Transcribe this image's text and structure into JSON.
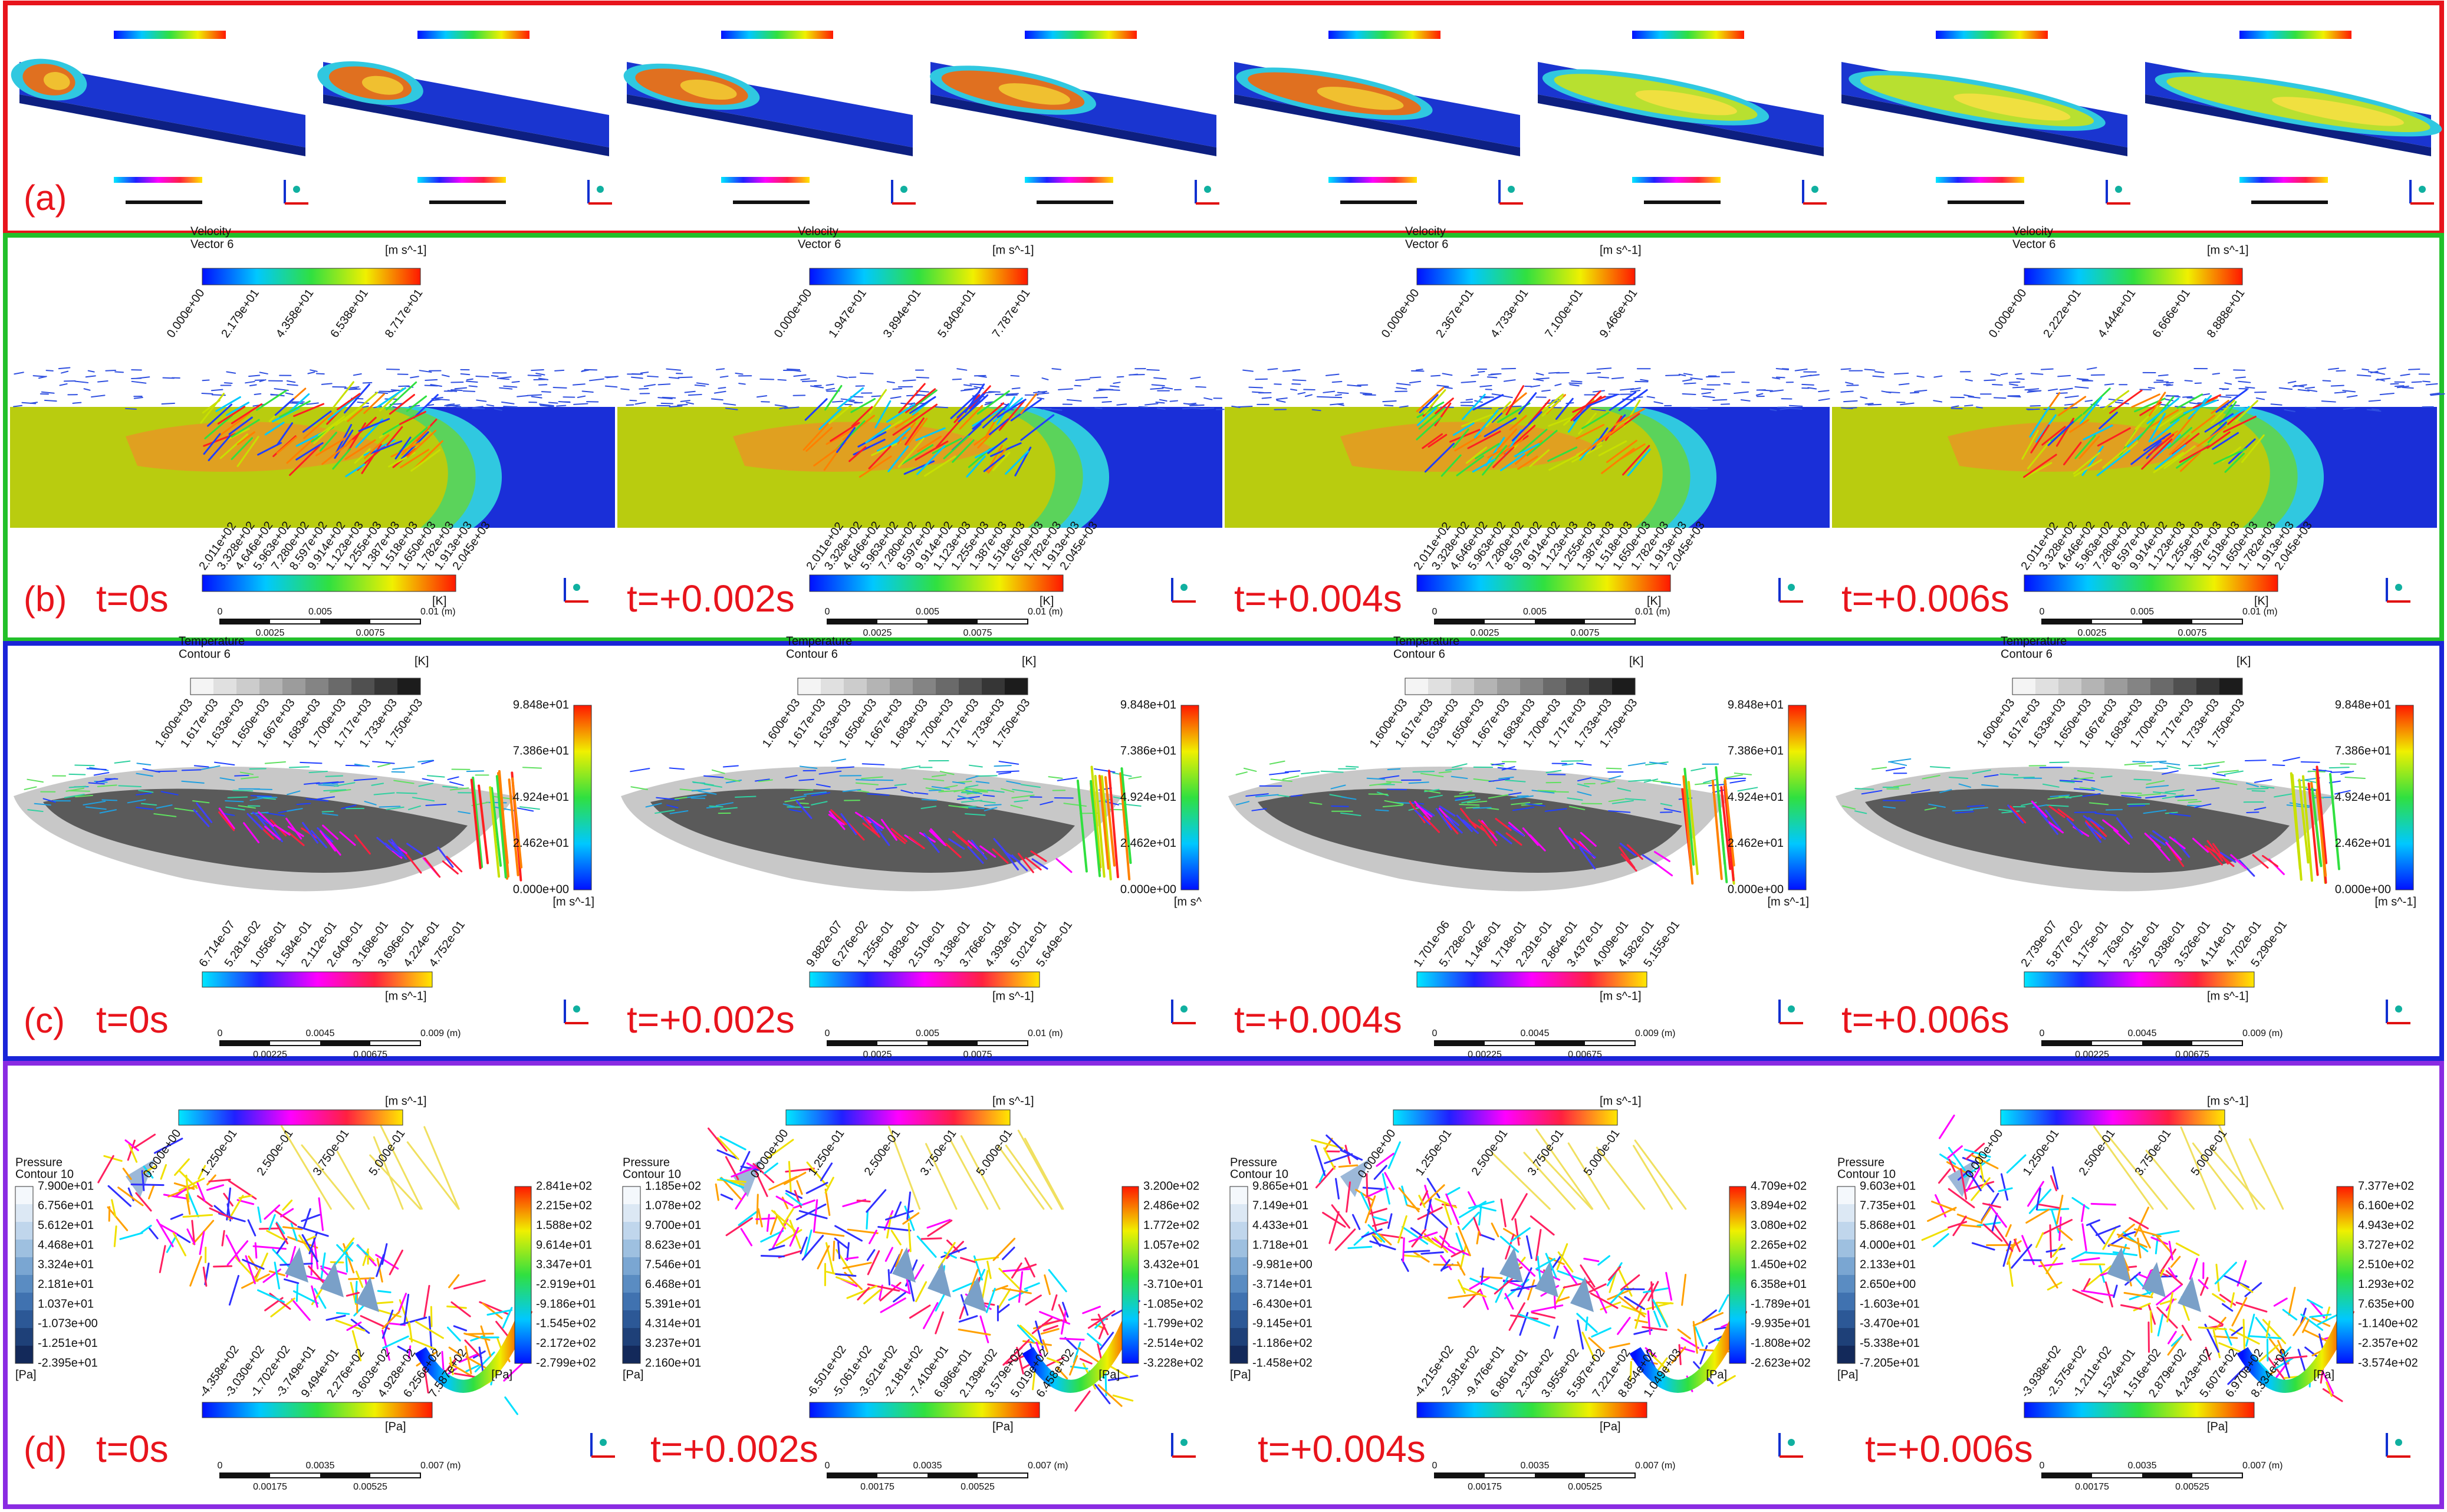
{
  "panel_a": {
    "label": "(a)"
  },
  "panel_b": {
    "label": "(b)",
    "frames": [
      {
        "time": "t=0s",
        "velocity_bar": {
          "title": "Velocity",
          "subtitle": "Vector 6",
          "unit": "[m s^-1]",
          "ticks": [
            "0.000e+00",
            "2.179e+01",
            "4.358e+01",
            "6.538e+01",
            "8.717e+01"
          ]
        },
        "temperature_bar": {
          "unit": "[K]",
          "ticks": [
            "2.011e+02",
            "3.328e+02",
            "4.646e+02",
            "5.963e+02",
            "7.280e+02",
            "8.597e+02",
            "9.914e+02",
            "1.123e+03",
            "1.255e+03",
            "1.387e+03",
            "1.518e+03",
            "1.650e+03",
            "1.782e+03",
            "1.913e+03",
            "2.045e+03"
          ]
        },
        "scale": {
          "ticks": [
            "0",
            "0.005",
            "0.01 (m)"
          ],
          "minor": [
            "0.0025",
            "0.0075"
          ]
        }
      },
      {
        "time": "t=+0.002s",
        "velocity_bar": {
          "title": "Velocity",
          "subtitle": "Vector 6",
          "unit": "[m s^-1]",
          "ticks": [
            "0.000e+00",
            "1.947e+01",
            "3.894e+01",
            "5.840e+01",
            "7.787e+01"
          ]
        },
        "temperature_bar": {
          "unit": "[K]",
          "ticks": [
            "2.011e+02",
            "3.328e+02",
            "4.646e+02",
            "5.963e+02",
            "7.280e+02",
            "8.597e+02",
            "9.914e+02",
            "1.123e+03",
            "1.255e+03",
            "1.387e+03",
            "1.518e+03",
            "1.650e+03",
            "1.782e+03",
            "1.913e+03",
            "2.045e+03"
          ]
        },
        "scale": {
          "ticks": [
            "0",
            "0.005",
            "0.01 (m)"
          ],
          "minor": [
            "0.0025",
            "0.0075"
          ]
        }
      },
      {
        "time": "t=+0.004s",
        "velocity_bar": {
          "title": "Velocity",
          "subtitle": "Vector 6",
          "unit": "[m s^-1]",
          "ticks": [
            "0.000e+00",
            "2.367e+01",
            "4.733e+01",
            "7.100e+01",
            "9.466e+01"
          ]
        },
        "temperature_bar": {
          "unit": "[K]",
          "ticks": [
            "2.011e+02",
            "3.328e+02",
            "4.646e+02",
            "5.963e+02",
            "7.280e+02",
            "8.597e+02",
            "9.914e+02",
            "1.123e+03",
            "1.255e+03",
            "1.387e+03",
            "1.518e+03",
            "1.650e+03",
            "1.782e+03",
            "1.913e+03",
            "2.045e+03"
          ]
        },
        "scale": {
          "ticks": [
            "0",
            "0.005",
            "0.01 (m)"
          ],
          "minor": [
            "0.0025",
            "0.0075"
          ]
        }
      },
      {
        "time": "t=+0.006s",
        "velocity_bar": {
          "title": "Velocity",
          "subtitle": "Vector 6",
          "unit": "[m s^-1]",
          "ticks": [
            "0.000e+00",
            "2.222e+01",
            "4.444e+01",
            "6.666e+01",
            "8.888e+01"
          ]
        },
        "temperature_bar": {
          "unit": "[K]",
          "ticks": [
            "2.011e+02",
            "3.328e+02",
            "4.646e+02",
            "5.963e+02",
            "7.280e+02",
            "8.597e+02",
            "9.914e+02",
            "1.123e+03",
            "1.255e+03",
            "1.387e+03",
            "1.518e+03",
            "1.650e+03",
            "1.782e+03",
            "1.913e+03",
            "2.045e+03"
          ]
        },
        "scale": {
          "ticks": [
            "0",
            "0.005",
            "0.01 (m)"
          ],
          "minor": [
            "0.0025",
            "0.0075"
          ]
        }
      }
    ]
  },
  "panel_c": {
    "label": "(c)",
    "frames": [
      {
        "time": "t=0s",
        "temperature_bar": {
          "title": "Temperature",
          "subtitle": "Contour 6",
          "unit": "[K]",
          "ticks": [
            "1.600e+03",
            "1.617e+03",
            "1.633e+03",
            "1.650e+03",
            "1.667e+03",
            "1.683e+03",
            "1.700e+03",
            "1.717e+03",
            "1.733e+03",
            "1.750e+03"
          ]
        },
        "side_bar": {
          "unit": "[m s^-1]",
          "ticks": [
            "9.848e+01",
            "7.386e+01",
            "4.924e+01",
            "2.462e+01",
            "0.000e+00"
          ]
        },
        "bottom_bar": {
          "unit": "[m s^-1]",
          "ticks": [
            "6.714e-07",
            "5.281e-02",
            "1.056e-01",
            "1.584e-01",
            "2.112e-01",
            "2.640e-01",
            "3.168e-01",
            "3.696e-01",
            "4.224e-01",
            "4.752e-01"
          ]
        },
        "scale": {
          "ticks": [
            "0",
            "0.0045",
            "0.009 (m)"
          ],
          "minor": [
            "0.00225",
            "0.00675"
          ]
        }
      },
      {
        "time": "t=+0.002s",
        "temperature_bar": {
          "title": "Temperature",
          "subtitle": "Contour 6",
          "unit": "[K]",
          "ticks": [
            "1.600e+03",
            "1.617e+03",
            "1.633e+03",
            "1.650e+03",
            "1.667e+03",
            "1.683e+03",
            "1.700e+03",
            "1.717e+03",
            "1.733e+03",
            "1.750e+03"
          ]
        },
        "side_bar": {
          "unit": "[m s^",
          "ticks": [
            "9.848e+01",
            "7.386e+01",
            "4.924e+01",
            "2.462e+01",
            "0.000e+00"
          ]
        },
        "bottom_bar": {
          "unit": "[m s^-1]",
          "ticks": [
            "9.882e-07",
            "6.276e-02",
            "1.255e-01",
            "1.883e-01",
            "2.510e-01",
            "3.138e-01",
            "3.766e-01",
            "4.393e-01",
            "5.021e-01",
            "5.649e-01"
          ]
        },
        "scale": {
          "ticks": [
            "0",
            "0.005",
            "0.01 (m)"
          ],
          "minor": [
            "0.0025",
            "0.0075"
          ]
        }
      },
      {
        "time": "t=+0.004s",
        "temperature_bar": {
          "title": "Temperature",
          "subtitle": "Contour 6",
          "unit": "[K]",
          "ticks": [
            "1.600e+03",
            "1.617e+03",
            "1.633e+03",
            "1.650e+03",
            "1.667e+03",
            "1.683e+03",
            "1.700e+03",
            "1.717e+03",
            "1.733e+03",
            "1.750e+03"
          ]
        },
        "side_bar": {
          "unit": "[m s^-1]",
          "ticks": [
            "9.848e+01",
            "7.386e+01",
            "4.924e+01",
            "2.462e+01",
            "0.000e+00"
          ]
        },
        "bottom_bar": {
          "unit": "[m s^-1]",
          "ticks": [
            "1.701e-06",
            "5.728e-02",
            "1.146e-01",
            "1.718e-01",
            "2.291e-01",
            "2.864e-01",
            "3.437e-01",
            "4.009e-01",
            "4.582e-01",
            "5.155e-01"
          ]
        },
        "scale": {
          "ticks": [
            "0",
            "0.0045",
            "0.009 (m)"
          ],
          "minor": [
            "0.00225",
            "0.00675"
          ]
        }
      },
      {
        "time": "t=+0.006s",
        "temperature_bar": {
          "title": "Temperature",
          "subtitle": "Contour 6",
          "unit": "[K]",
          "ticks": [
            "1.600e+03",
            "1.617e+03",
            "1.633e+03",
            "1.650e+03",
            "1.667e+03",
            "1.683e+03",
            "1.700e+03",
            "1.717e+03",
            "1.733e+03",
            "1.750e+03"
          ]
        },
        "side_bar": {
          "unit": "[m s^-1]",
          "ticks": [
            "9.848e+01",
            "7.386e+01",
            "4.924e+01",
            "2.462e+01",
            "0.000e+00"
          ]
        },
        "bottom_bar": {
          "unit": "[m s^-1]",
          "ticks": [
            "2.739e-07",
            "5.877e-02",
            "1.175e-01",
            "1.763e-01",
            "2.351e-01",
            "2.938e-01",
            "3.526e-01",
            "4.114e-01",
            "4.702e-01",
            "5.290e-01"
          ]
        },
        "scale": {
          "ticks": [
            "0",
            "0.0045",
            "0.009 (m)"
          ],
          "minor": [
            "0.00225",
            "0.00675"
          ]
        }
      }
    ]
  },
  "panel_d": {
    "label": "(d)",
    "frames": [
      {
        "time": "t=0s",
        "top_bar": {
          "unit": "[m s^-1]",
          "ticks": [
            "0.000e+00",
            "1.250e-01",
            "2.500e-01",
            "3.750e-01",
            "5.000e-01"
          ]
        },
        "left_bar": {
          "title": "Pressure",
          "subtitle": "Contour 10",
          "unit": "[Pa]",
          "ticks": [
            "7.900e+01",
            "6.756e+01",
            "5.612e+01",
            "4.468e+01",
            "3.324e+01",
            "2.181e+01",
            "1.037e+01",
            "-1.073e+00",
            "-1.251e+01",
            "-2.395e+01"
          ]
        },
        "right_bar": {
          "unit": "[Pa]",
          "ticks": [
            "2.841e+02",
            "2.215e+02",
            "1.588e+02",
            "9.614e+01",
            "3.347e+01",
            "-2.919e+01",
            "-9.186e+01",
            "-1.545e+02",
            "-2.172e+02",
            "-2.799e+02"
          ]
        },
        "bottom_bar": {
          "unit": "[Pa]",
          "ticks": [
            "-4.358e+02",
            "-3.030e+02",
            "-1.702e+02",
            "-3.749e+01",
            "9.494e+01",
            "2.276e+02",
            "3.603e+02",
            "4.928e+02",
            "6.256e+02",
            "7.587e+02"
          ]
        },
        "scale": {
          "ticks": [
            "0",
            "0.0035",
            "0.007 (m)"
          ],
          "minor": [
            "0.00175",
            "0.00525"
          ]
        }
      },
      {
        "time": "t=+0.002s",
        "top_bar": {
          "unit": "[m s^-1]",
          "ticks": [
            "0.000e+00",
            "1.250e-01",
            "2.500e-01",
            "3.750e-01",
            "5.000e-01"
          ]
        },
        "left_bar": {
          "title": "Pressure",
          "subtitle": "Contour 10",
          "unit": "[Pa]",
          "ticks": [
            "1.185e+02",
            "1.078e+02",
            "9.700e+01",
            "8.623e+01",
            "7.546e+01",
            "6.468e+01",
            "5.391e+01",
            "4.314e+01",
            "3.237e+01",
            "2.160e+01"
          ]
        },
        "right_bar": {
          "unit": "[Pa]",
          "ticks": [
            "3.200e+02",
            "2.486e+02",
            "1.772e+02",
            "1.057e+02",
            "3.432e+01",
            "-3.710e+01",
            "-1.085e+02",
            "-1.799e+02",
            "-2.514e+02",
            "-3.228e+02"
          ]
        },
        "bottom_bar": {
          "unit": "[Pa]",
          "ticks": [
            "-6.501e+02",
            "-5.061e+02",
            "-3.621e+02",
            "-2.181e+02",
            "-7.410e+01",
            "6.986e+01",
            "2.139e+02",
            "3.579e+02",
            "5.019e+02",
            "6.458e+02"
          ]
        },
        "scale": {
          "ticks": [
            "0",
            "0.0035",
            "0.007 (m)"
          ],
          "minor": [
            "0.00175",
            "0.00525"
          ]
        }
      },
      {
        "time": "t=+0.004s",
        "top_bar": {
          "unit": "[m s^-1]",
          "ticks": [
            "0.000e+00",
            "1.250e-01",
            "2.500e-01",
            "3.750e-01",
            "5.000e-01"
          ]
        },
        "left_bar": {
          "title": "Pressure",
          "subtitle": "Contour 10",
          "unit": "[Pa]",
          "ticks": [
            "9.865e+01",
            "7.149e+01",
            "4.433e+01",
            "1.718e+01",
            "-9.981e+00",
            "-3.714e+01",
            "-6.430e+01",
            "-9.145e+01",
            "-1.186e+02",
            "-1.458e+02"
          ]
        },
        "right_bar": {
          "unit": "[Pa]",
          "ticks": [
            "4.709e+02",
            "3.894e+02",
            "3.080e+02",
            "2.265e+02",
            "1.450e+02",
            "6.358e+01",
            "-1.789e+01",
            "-9.935e+01",
            "-1.808e+02",
            "-2.623e+02"
          ]
        },
        "bottom_bar": {
          "unit": "[Pa]",
          "ticks": [
            "-4.215e+02",
            "-2.581e+02",
            "-9.476e+01",
            "6.861e+01",
            "2.320e+02",
            "3.955e+02",
            "5.587e+02",
            "7.221e+02",
            "8.854e+02",
            "1.049e+03"
          ]
        },
        "scale": {
          "ticks": [
            "0",
            "0.0035",
            "0.007 (m)"
          ],
          "minor": [
            "0.00175",
            "0.00525"
          ]
        }
      },
      {
        "time": "t=+0.006s",
        "top_bar": {
          "unit": "[m s^-1]",
          "ticks": [
            "0.000e+00",
            "1.250e-01",
            "2.500e-01",
            "3.750e-01",
            "5.000e-01"
          ]
        },
        "left_bar": {
          "title": "Pressure",
          "subtitle": "Contour 10",
          "unit": "[Pa]",
          "ticks": [
            "9.603e+01",
            "7.735e+01",
            "5.868e+01",
            "4.000e+01",
            "2.133e+01",
            "2.650e+00",
            "-1.603e+01",
            "-3.470e+01",
            "-5.338e+01",
            "-7.205e+01"
          ]
        },
        "right_bar": {
          "unit": "[Pa]",
          "ticks": [
            "7.377e+02",
            "6.160e+02",
            "4.943e+02",
            "3.727e+02",
            "2.510e+02",
            "1.293e+02",
            "7.635e+00",
            "-1.140e+02",
            "-2.357e+02",
            "-3.574e+02"
          ]
        },
        "bottom_bar": {
          "unit": "[Pa]",
          "ticks": [
            "-3.938e+02",
            "-2.575e+02",
            "-1.211e+02",
            "1.524e+01",
            "1.516e+02",
            "2.879e+02",
            "4.243e+02",
            "5.607e+02",
            "6.970e+02",
            "8.334e+02"
          ]
        },
        "scale": {
          "ticks": [
            "0",
            "0.0035",
            "0.007 (m)"
          ],
          "minor": [
            "0.00175",
            "0.00525"
          ]
        }
      }
    ]
  }
}
